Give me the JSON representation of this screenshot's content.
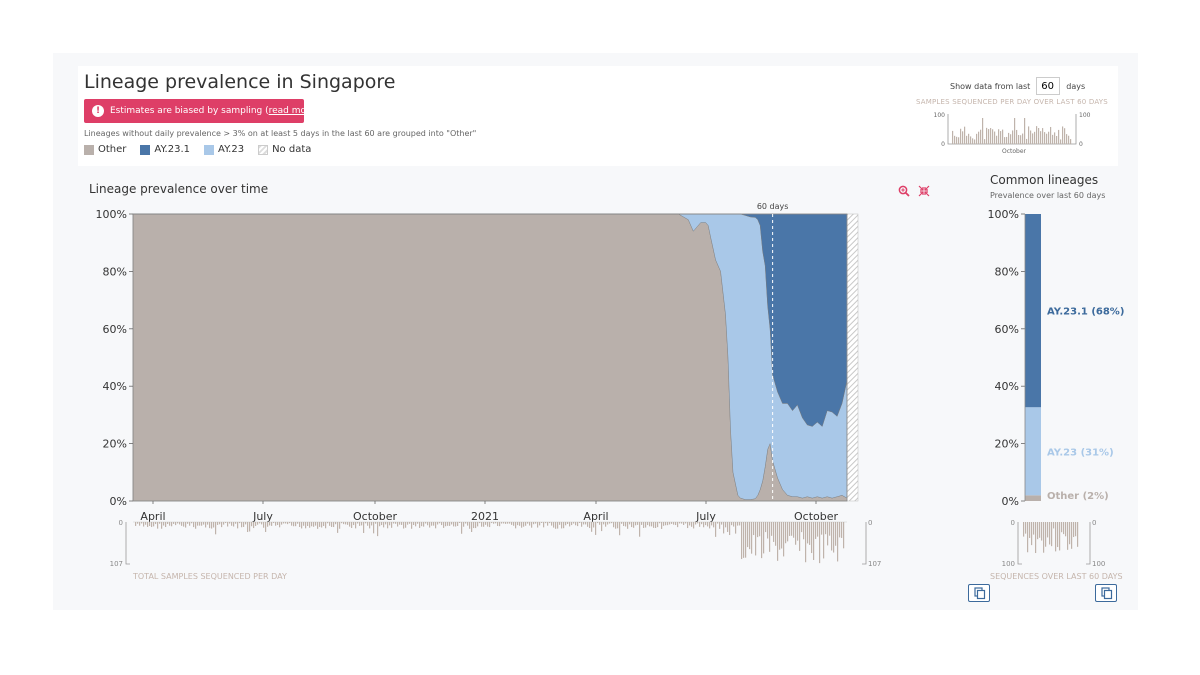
{
  "header": {
    "title": "Lineage prevalence in Singapore",
    "warning": {
      "text": "Estimates are biased by sampling (",
      "link": "read more",
      "suffix": ")"
    },
    "note": "Lineages without daily prevalence > 3% on at least 5 days in the last 60 are grouped into \"Other\"",
    "legend": [
      {
        "label": "Other",
        "color": "#b9b0ab"
      },
      {
        "label": "AY.23.1",
        "color": "#4a76a8"
      },
      {
        "label": "AY.23",
        "color": "#a9c8e8"
      },
      {
        "label": "No data",
        "color": "nodata"
      }
    ],
    "days_control": {
      "prefix": "Show data from last",
      "value": "60",
      "suffix": "days"
    },
    "samples_label": "SAMPLES SEQUENCED PER DAY OVER LAST 60 DAYS"
  },
  "main": {
    "title": "Lineage prevalence over time",
    "marker_label": "60 days",
    "bottom_label": "TOTAL SAMPLES SEQUENCED PER DAY",
    "icons": [
      "zoom-in-icon",
      "collapse-icon"
    ]
  },
  "side": {
    "title": "Common lineages",
    "subtitle": "Prevalence over last 60 days",
    "bottom_label": "SEQUENCES OVER LAST 60 DAYS"
  },
  "chart_data": [
    {
      "type": "area",
      "title": "Lineage prevalence over time",
      "x_ticks": [
        "April",
        "July",
        "October",
        "2021",
        "April",
        "July",
        "October"
      ],
      "y_ticks": [
        "0%",
        "20%",
        "40%",
        "60%",
        "80%",
        "100%"
      ],
      "ylim": [
        0,
        100
      ],
      "x": [
        0,
        100,
        200,
        300,
        400,
        440,
        448,
        452,
        458,
        462,
        464,
        466,
        470,
        474,
        478,
        480,
        482,
        484,
        488,
        490,
        494,
        498,
        502,
        504,
        506,
        508,
        510,
        512,
        514,
        516,
        520,
        524,
        528,
        532,
        536,
        540,
        544,
        548,
        552,
        556,
        560,
        564,
        568,
        572,
        576
      ],
      "series": [
        {
          "name": "Other",
          "values": [
            100,
            100,
            100,
            100,
            100,
            100,
            98,
            94,
            97,
            97,
            96,
            92,
            84,
            80,
            65,
            50,
            25,
            10,
            2,
            1,
            0.5,
            0.5,
            0.8,
            2,
            4,
            7,
            12,
            18,
            20,
            14,
            8,
            4,
            2,
            1.5,
            1.5,
            1,
            1.5,
            1,
            1.5,
            1,
            1.5,
            1,
            1.5,
            2,
            1
          ]
        },
        {
          "name": "AY.23",
          "values": [
            0,
            0,
            0,
            0,
            0,
            0,
            2,
            6,
            3,
            3,
            4,
            8,
            16,
            20,
            35,
            50,
            75,
            90,
            98,
            99,
            99,
            98.5,
            98,
            96,
            92,
            80,
            70,
            50,
            40,
            30,
            30,
            30,
            32,
            30,
            32,
            28,
            25,
            25,
            26,
            25,
            30,
            30,
            28,
            32,
            41
          ]
        },
        {
          "name": "AY.23.1",
          "values": [
            0,
            0,
            0,
            0,
            0,
            0,
            0,
            0,
            0,
            0,
            0,
            0,
            0,
            0,
            0,
            0,
            0,
            0,
            0,
            0,
            0.5,
            1,
            1.2,
            2,
            4,
            13,
            18,
            32,
            40,
            56,
            62,
            66,
            66,
            68.5,
            66.5,
            71,
            73.5,
            74,
            72.5,
            74,
            68.5,
            69,
            70.5,
            66,
            58
          ]
        }
      ],
      "samples_axis": [
        "0",
        "107"
      ]
    },
    {
      "type": "bar",
      "title": "Common lineages",
      "categories": [
        "AY.23.1",
        "AY.23",
        "Other"
      ],
      "values": [
        68,
        31,
        2
      ],
      "labels": [
        "AY.23.1 (68%)",
        "AY.23 (31%)",
        "Other (2%)"
      ],
      "colors": [
        "#4a76a8",
        "#a9c8e8",
        "#b9b0ab"
      ],
      "y_ticks": [
        "0%",
        "20%",
        "40%",
        "60%",
        "80%",
        "100%"
      ],
      "ylim": [
        0,
        100
      ],
      "samples_axis": [
        "0",
        "100"
      ]
    },
    {
      "type": "bar",
      "title": "SAMPLES SEQUENCED PER DAY OVER LAST 60 DAYS",
      "x_ticks": [
        "October"
      ],
      "y_ticks": [
        "0",
        "100"
      ],
      "ylim": [
        0,
        100
      ]
    }
  ]
}
